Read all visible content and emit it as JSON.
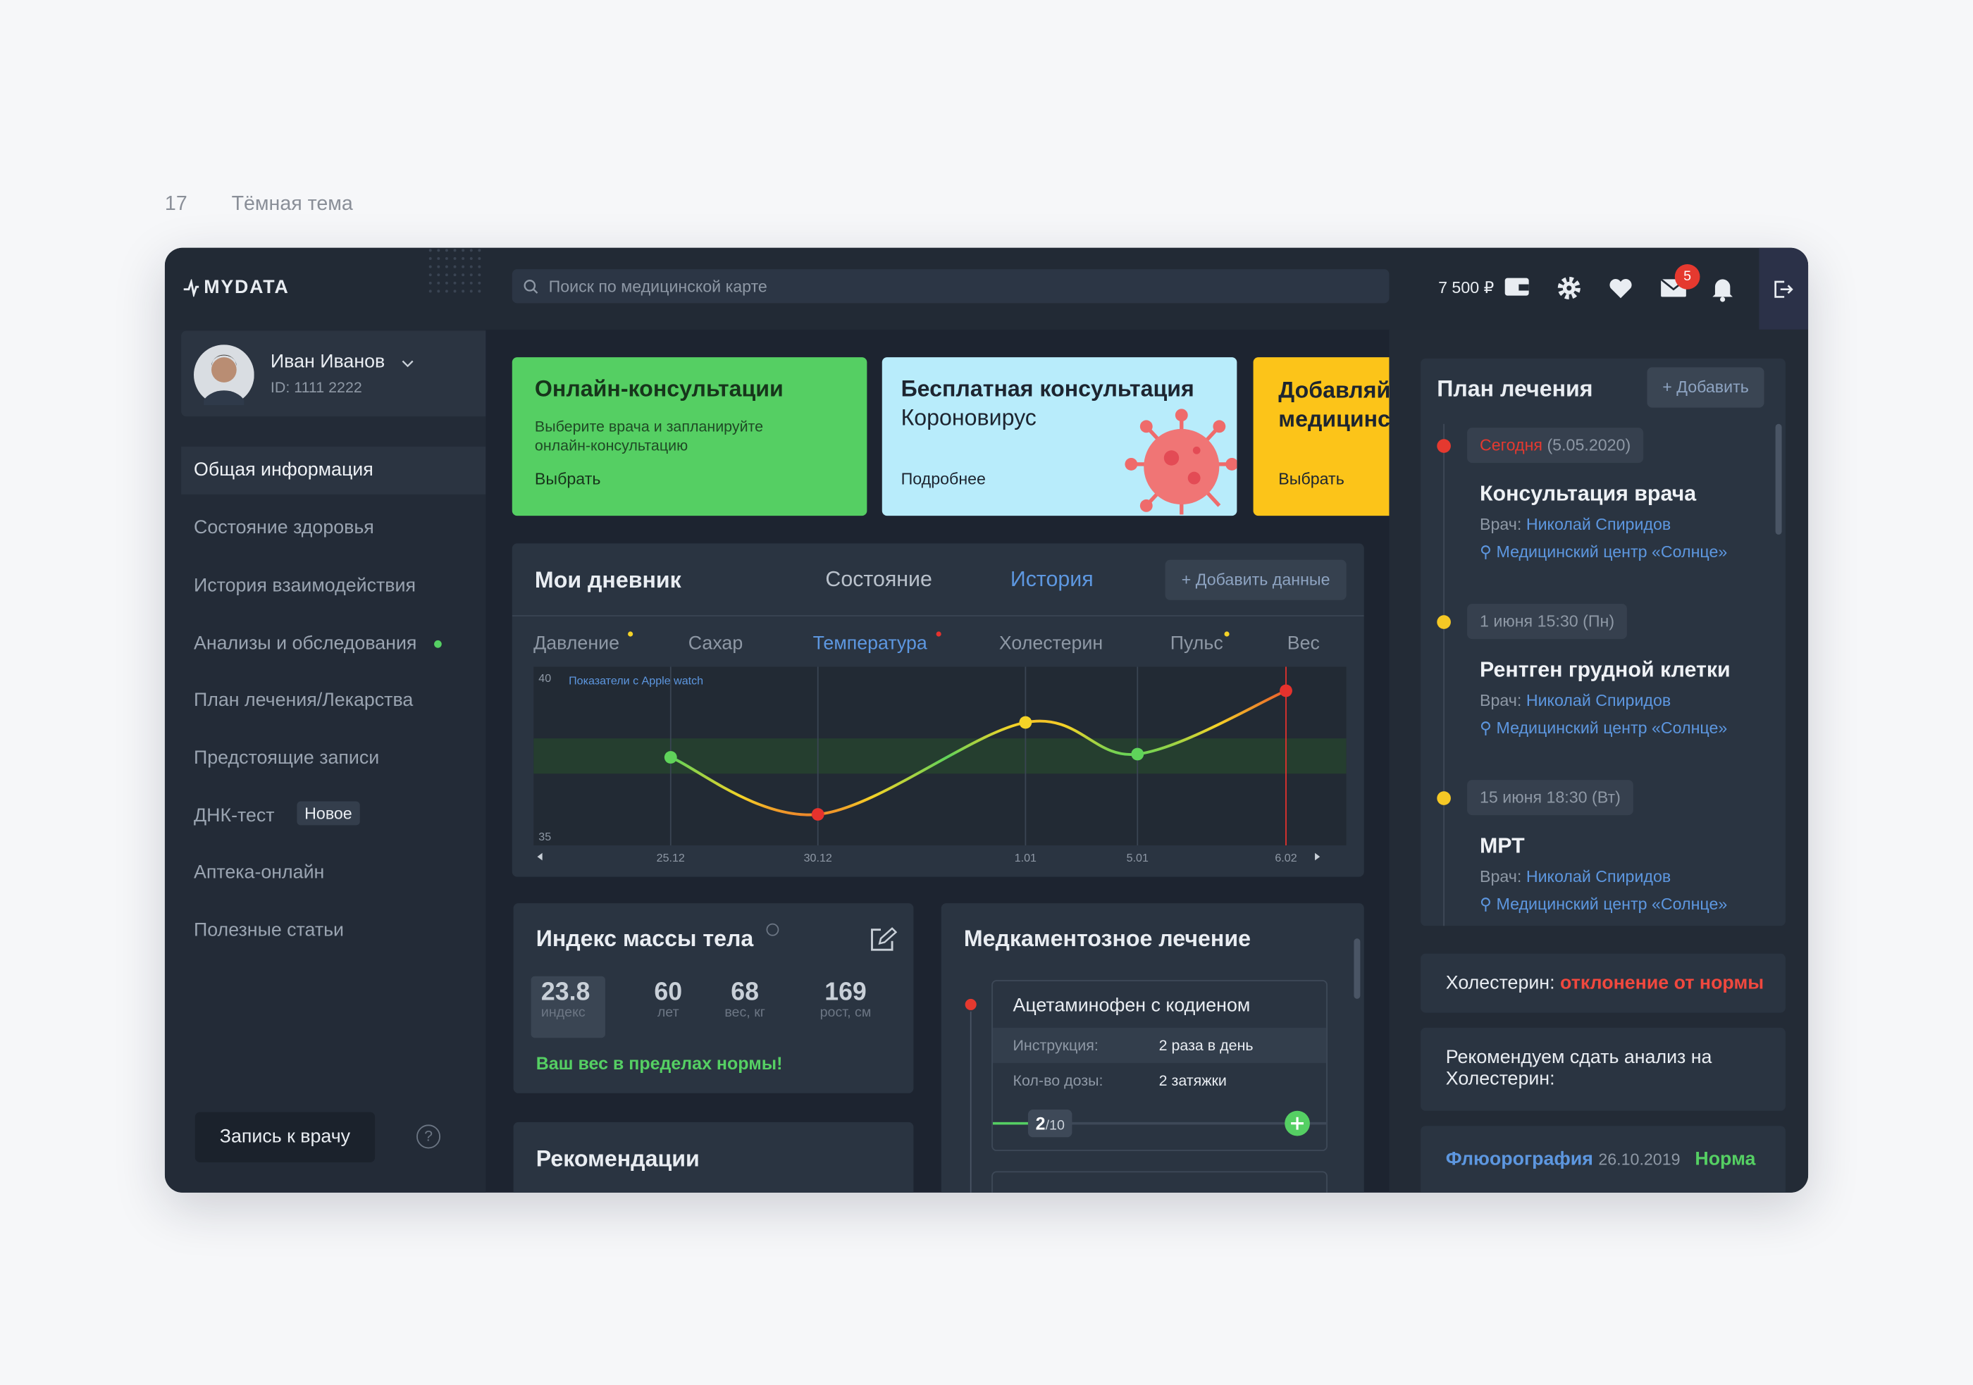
{
  "page": {
    "number": "17",
    "title": "Тёмная тема"
  },
  "header": {
    "logo": "MYDATA",
    "search_placeholder": "Поиск по медицинской карте",
    "balance": "7 500 ₽",
    "notifications": 5
  },
  "user": {
    "name": "Иван Иванов",
    "id": "ID: 1111 2222"
  },
  "nav": {
    "items": [
      "Общая информация",
      "Состояние здоровья",
      "История взаимодействия",
      "Анализы и обследования",
      "План лечения/Лекарства",
      "Предстоящие записи",
      "ДНК-тест",
      "Аптека-онлайн",
      "Полезные статьи"
    ],
    "badge": "Новое",
    "button": "Запись к врачу",
    "help": "?"
  },
  "promos": [
    {
      "title": "Онлайн-консультации",
      "text": "Выберите врача и запланируйте онлайн-консультацию",
      "link": "Выбрать"
    },
    {
      "title": "Бесплатная консультация",
      "subtitle": "Короновирус",
      "link": "Подробнее"
    },
    {
      "title": "Добавляйте медицинские",
      "link": "Выбрать"
    }
  ],
  "diary": {
    "title": "Мои дневник",
    "tabs": [
      "Состояние",
      "История"
    ],
    "add": "+ Добавить данные",
    "metrics": [
      "Давление",
      "Сахар",
      "Температура",
      "Холестерин",
      "Пульс",
      "Вес"
    ],
    "chart": {
      "type": "line",
      "annotation": "Показатели с Apple watch",
      "x": [
        "25.12",
        "30.12",
        "1.01",
        "5.01",
        "6.02"
      ],
      "values": [
        37.5,
        35.7,
        38.6,
        37.6,
        39.6
      ],
      "point_colors": [
        "#5fd35a",
        "#e5322d",
        "#f5d327",
        "#5fd35a",
        "#e5322d"
      ],
      "ylim": [
        35,
        40
      ],
      "yticks": [
        35,
        40
      ]
    }
  },
  "bmi": {
    "title": "Индекс массы тела",
    "stats": [
      {
        "value": 23.8,
        "label": "индекс"
      },
      {
        "value": 60,
        "label": "лет"
      },
      {
        "value": 68,
        "label": "вес, кг"
      },
      {
        "value": 169,
        "label": "рост, см"
      }
    ],
    "message": "Ваш вес в пределах нормы!"
  },
  "recommendations": {
    "title": "Рекомендации"
  },
  "meds": {
    "title": "Медкаментозное лечение",
    "drug": "Ацетаминофен с кодиеном",
    "rows": [
      [
        "Инструкция:",
        "2 раза в день"
      ],
      [
        "Кол-во дозы:",
        "2 затяжки"
      ]
    ],
    "progress": {
      "done": "2",
      "total": "/10"
    }
  },
  "plan": {
    "title": "План лечения",
    "add": "+ Добавить",
    "items": [
      {
        "date": "Сегодня",
        "date_extra": "(5.05.2020)",
        "title": "Консультация врача",
        "doctor_label": "Врач:",
        "doctor": "Николай Спиридов",
        "place": "Медицинский центр «Солнце»"
      },
      {
        "date": "1 июня 15:30 (Пн)",
        "title": "Рентген грудной клетки",
        "doctor_label": "Врач:",
        "doctor": "Николай Спиридов",
        "place": "Медицинский центр «Солнце»"
      },
      {
        "date": "15 июня 18:30 (Вт)",
        "title": "МРТ",
        "doctor_label": "Врач:",
        "doctor": "Николай Спиридов",
        "place": "Медицинский центр «Солнце»"
      }
    ]
  },
  "alerts": {
    "cholesterol": {
      "label": "Холестерин:",
      "status": "отклонение от нормы"
    },
    "recommend": "Рекомендуем сдать анализ на Холестерин:",
    "fluoro": {
      "name": "Флюорография",
      "date": "26.10.2019",
      "status": "Норма"
    }
  }
}
